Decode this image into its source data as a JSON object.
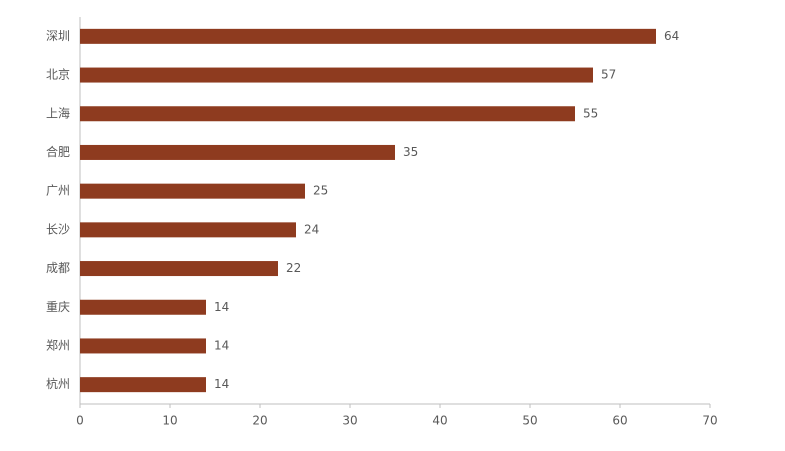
{
  "chart_data": {
    "type": "bar",
    "categories": [
      "深圳",
      "北京",
      "上海",
      "合肥",
      "广州",
      "长沙",
      "成都",
      "重庆",
      "郑州",
      "杭州"
    ],
    "values": [
      64,
      57,
      55,
      35,
      25,
      24,
      22,
      14,
      14,
      14
    ],
    "color": "#8e3b1f",
    "xlim": [
      0,
      70
    ],
    "xticks": [
      0,
      10,
      20,
      30,
      40,
      50,
      60,
      70
    ],
    "grid": false
  }
}
